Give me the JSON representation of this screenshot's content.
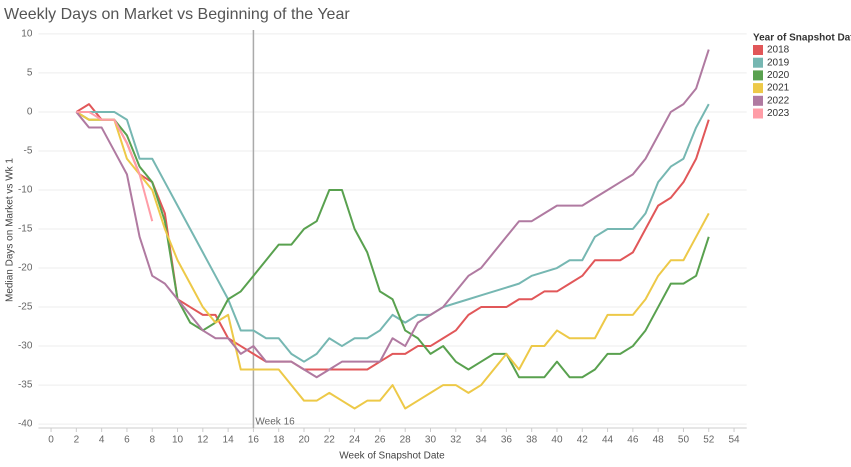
{
  "chart_data": {
    "type": "line",
    "title": "Weekly Days on Market vs Beginning of the Year",
    "x_label": "Week of Snapshot Date",
    "y_label": "Median Days on Market vs Wk 1",
    "legend_title": "Year of Snapshot Date",
    "legend": "right",
    "grid": true,
    "xlim": [
      -1,
      55
    ],
    "ylim": [
      -40.5,
      10.5
    ],
    "xticks": [
      0,
      2,
      4,
      6,
      8,
      10,
      12,
      14,
      16,
      18,
      20,
      22,
      24,
      26,
      28,
      30,
      32,
      34,
      36,
      38,
      40,
      42,
      44,
      46,
      48,
      50,
      52,
      54
    ],
    "yticks": [
      10,
      5,
      0,
      -5,
      -10,
      -15,
      -20,
      -25,
      -30,
      -35,
      -40
    ],
    "reference_line": {
      "x": 16,
      "label": "Week 16",
      "color": "#aaaaaa"
    },
    "x": [
      2,
      3,
      4,
      5,
      6,
      7,
      8,
      9,
      10,
      11,
      12,
      13,
      14,
      15,
      16,
      17,
      18,
      19,
      20,
      21,
      22,
      23,
      24,
      25,
      26,
      27,
      28,
      29,
      30,
      31,
      32,
      33,
      34,
      35,
      36,
      37,
      38,
      39,
      40,
      41,
      42,
      43,
      44,
      45,
      46,
      47,
      48,
      49,
      50,
      51,
      52
    ],
    "series": [
      {
        "name": "2018",
        "color": "#e15759",
        "values": [
          0,
          1,
          -1,
          -1,
          -4,
          -8,
          -9,
          -13,
          -24,
          -25,
          -26,
          -26,
          -29,
          -30,
          -31,
          -32,
          -32,
          -32,
          -33,
          -33,
          -33,
          -33,
          -33,
          -33,
          -32,
          -31,
          -31,
          -30,
          -30,
          -29,
          -28,
          -26,
          -25,
          -25,
          -25,
          -24,
          -24,
          -23,
          -23,
          -22,
          -21,
          -19,
          -19,
          -19,
          -18,
          -15,
          -12,
          -11,
          -9,
          -6,
          -1
        ]
      },
      {
        "name": "2019",
        "color": "#76b7b2",
        "values": [
          0,
          0,
          0,
          0,
          -1,
          -6,
          -6,
          -9,
          -12,
          -15,
          -18,
          -21,
          -24,
          -28,
          -28,
          -29,
          -29,
          -31,
          -32,
          -31,
          -29,
          -30,
          -29,
          -29,
          -28,
          -26,
          -27,
          -26,
          -26,
          -25,
          -24.5,
          -24,
          -23.5,
          -23,
          -22.5,
          -22,
          -21,
          -20.5,
          -20,
          -19,
          -19,
          -16,
          -15,
          -15,
          -15,
          -13,
          -9,
          -7,
          -6,
          -2,
          1
        ]
      },
      {
        "name": "2020",
        "color": "#59a14f",
        "values": [
          0,
          -1,
          -1,
          -1,
          -3,
          -7,
          -9,
          -14,
          -24,
          -27,
          -28,
          -27,
          -24,
          -23,
          -21,
          -19,
          -17,
          -17,
          -15,
          -14,
          -10,
          -10,
          -15,
          -18,
          -23,
          -24,
          -28,
          -29,
          -31,
          -30,
          -32,
          -33,
          -32,
          -31,
          -31,
          -34,
          -34,
          -34,
          -32,
          -34,
          -34,
          -33,
          -31,
          -31,
          -30,
          -28,
          -25,
          -22,
          -22,
          -21,
          -16
        ]
      },
      {
        "name": "2021",
        "color": "#edc948",
        "values": [
          0,
          -1,
          -1,
          -1,
          -6,
          -8,
          -10,
          -15,
          -19,
          -22,
          -25,
          -27,
          -26,
          -33,
          -33,
          -33,
          -33,
          -35,
          -37,
          -37,
          -36,
          -37,
          -38,
          -37,
          -37,
          -35,
          -38,
          -37,
          -36,
          -35,
          -35,
          -36,
          -35,
          -33,
          -31,
          -33,
          -30,
          -30,
          -28,
          -29,
          -29,
          -29,
          -26,
          -26,
          -26,
          -24,
          -21,
          -19,
          -19,
          -16,
          -13
        ]
      },
      {
        "name": "2022",
        "color": "#b07aa1",
        "values": [
          0,
          -2,
          -2,
          -5,
          -8,
          -16,
          -21,
          -22,
          -24,
          -26,
          -28,
          -29,
          -29,
          -31,
          -30,
          -32,
          -32,
          -32,
          -33,
          -34,
          -33,
          -32,
          -32,
          -32,
          -32,
          -29,
          -30,
          -27,
          -26,
          -25,
          -23,
          -21,
          -20,
          -18,
          -16,
          -14,
          -14,
          -13,
          -12,
          -12,
          -12,
          -11,
          -10,
          -9,
          -8,
          -6,
          -3,
          0,
          1,
          3,
          8
        ]
      },
      {
        "name": "2023",
        "color": "#ff9da7",
        "values": [
          0,
          0,
          -1,
          -1,
          -4,
          -8,
          -14,
          null,
          null,
          null,
          null,
          null,
          null,
          null,
          null,
          null,
          null,
          null,
          null,
          null,
          null,
          null,
          null,
          null,
          null,
          null,
          null,
          null,
          null,
          null,
          null,
          null,
          null,
          null,
          null,
          null,
          null,
          null,
          null,
          null,
          null,
          null,
          null,
          null,
          null,
          null,
          null,
          null,
          null,
          null,
          null
        ]
      }
    ]
  }
}
